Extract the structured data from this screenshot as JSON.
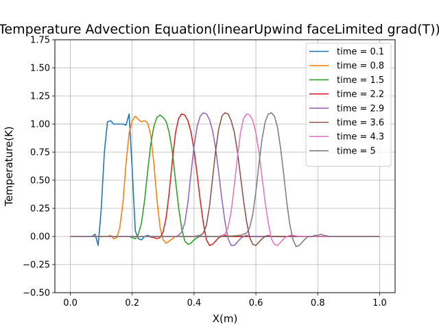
{
  "chart_data": {
    "type": "line",
    "title": "Temperature Advection Equation(linearUpwind faceLimited grad(T))",
    "xlabel": "X(m)",
    "ylabel": "Temperature(K)",
    "xlim": [
      -0.05,
      1.05
    ],
    "ylim": [
      -0.5,
      1.75
    ],
    "xticks": [
      0.0,
      0.2,
      0.4,
      0.6,
      0.8,
      1.0
    ],
    "xtick_labels": [
      "0.0",
      "0.2",
      "0.4",
      "0.6",
      "0.8",
      "1.0"
    ],
    "yticks": [
      -0.5,
      -0.25,
      0.0,
      0.25,
      0.5,
      0.75,
      1.0,
      1.25,
      1.5,
      1.75
    ],
    "ytick_labels": [
      "−0.50",
      "−0.25",
      "0.00",
      "0.25",
      "0.50",
      "0.75",
      "1.00",
      "1.25",
      "1.50",
      "1.75"
    ],
    "grid": true,
    "legend_position": "top-right",
    "series": [
      {
        "name": "time = 0.1",
        "color": "#1f77b4",
        "x": [
          0.0,
          0.02,
          0.04,
          0.06,
          0.07,
          0.08,
          0.09,
          0.1,
          0.11,
          0.12,
          0.13,
          0.14,
          0.15,
          0.16,
          0.17,
          0.18,
          0.19,
          0.2,
          0.21,
          0.22,
          0.23,
          0.24,
          0.25,
          0.26,
          0.28,
          0.3,
          0.35,
          0.4,
          0.5,
          0.6,
          0.7,
          0.8,
          0.9,
          1.0
        ],
        "y": [
          0.0,
          0.0,
          0.0,
          0.0,
          0.0,
          0.02,
          -0.08,
          0.25,
          0.75,
          1.02,
          1.03,
          1.0,
          1.0,
          1.0,
          1.0,
          0.99,
          1.09,
          0.6,
          0.05,
          -0.02,
          -0.03,
          0.0,
          0.01,
          0.0,
          0.0,
          0.0,
          0.0,
          0.0,
          0.0,
          0.0,
          0.0,
          0.0,
          0.0,
          0.0
        ]
      },
      {
        "name": "time = 0.8",
        "color": "#ff7f0e",
        "x": [
          0.0,
          0.05,
          0.1,
          0.12,
          0.13,
          0.14,
          0.15,
          0.16,
          0.17,
          0.18,
          0.19,
          0.2,
          0.21,
          0.22,
          0.23,
          0.24,
          0.25,
          0.26,
          0.27,
          0.28,
          0.29,
          0.3,
          0.31,
          0.32,
          0.33,
          0.34,
          0.36,
          0.4,
          0.5,
          0.6,
          0.7,
          0.8,
          0.9,
          1.0
        ],
        "y": [
          0.0,
          0.0,
          0.0,
          0.0,
          0.01,
          -0.02,
          -0.01,
          0.08,
          0.3,
          0.65,
          0.92,
          1.03,
          1.07,
          1.04,
          1.02,
          1.03,
          1.01,
          0.9,
          0.65,
          0.33,
          0.08,
          -0.03,
          -0.06,
          -0.04,
          -0.02,
          0.0,
          0.0,
          0.0,
          0.0,
          0.0,
          0.0,
          0.0,
          0.0,
          0.0
        ]
      },
      {
        "name": "time = 1.5",
        "color": "#2ca02c",
        "x": [
          0.0,
          0.1,
          0.18,
          0.19,
          0.2,
          0.21,
          0.22,
          0.23,
          0.24,
          0.25,
          0.26,
          0.27,
          0.28,
          0.29,
          0.3,
          0.31,
          0.32,
          0.33,
          0.34,
          0.35,
          0.36,
          0.37,
          0.38,
          0.39,
          0.4,
          0.41,
          0.42,
          0.44,
          0.5,
          0.6,
          0.7,
          0.8,
          0.9,
          1.0
        ],
        "y": [
          0.0,
          0.0,
          0.0,
          0.0,
          -0.01,
          -0.02,
          0.02,
          0.12,
          0.32,
          0.58,
          0.82,
          0.98,
          1.06,
          1.08,
          1.06,
          1.02,
          0.92,
          0.75,
          0.5,
          0.26,
          0.07,
          -0.04,
          -0.07,
          -0.06,
          -0.03,
          -0.01,
          0.0,
          0.0,
          0.0,
          0.0,
          0.0,
          0.0,
          0.0,
          0.0
        ]
      },
      {
        "name": "time = 2.2",
        "color": "#d62728",
        "x": [
          0.0,
          0.1,
          0.2,
          0.25,
          0.27,
          0.28,
          0.29,
          0.3,
          0.31,
          0.32,
          0.33,
          0.34,
          0.35,
          0.36,
          0.37,
          0.38,
          0.39,
          0.4,
          0.41,
          0.42,
          0.43,
          0.44,
          0.45,
          0.46,
          0.47,
          0.48,
          0.49,
          0.5,
          0.52,
          0.55,
          0.6,
          0.7,
          0.8,
          1.0
        ],
        "y": [
          0.0,
          0.0,
          0.0,
          0.0,
          -0.01,
          -0.02,
          -0.01,
          0.04,
          0.17,
          0.4,
          0.68,
          0.92,
          1.05,
          1.09,
          1.08,
          1.03,
          0.93,
          0.77,
          0.55,
          0.32,
          0.12,
          -0.03,
          -0.08,
          -0.07,
          -0.04,
          -0.01,
          0.0,
          0.01,
          0.0,
          0.0,
          0.0,
          0.0,
          0.0,
          0.0
        ]
      },
      {
        "name": "time = 2.9",
        "color": "#9467bd",
        "x": [
          0.0,
          0.1,
          0.2,
          0.3,
          0.34,
          0.35,
          0.36,
          0.37,
          0.38,
          0.39,
          0.4,
          0.41,
          0.42,
          0.43,
          0.44,
          0.45,
          0.46,
          0.47,
          0.48,
          0.49,
          0.5,
          0.51,
          0.52,
          0.53,
          0.54,
          0.55,
          0.56,
          0.57,
          0.58,
          0.6,
          0.65,
          0.7,
          0.8,
          1.0
        ],
        "y": [
          0.0,
          0.0,
          0.0,
          0.0,
          0.0,
          0.01,
          0.04,
          0.12,
          0.3,
          0.56,
          0.8,
          0.98,
          1.07,
          1.1,
          1.09,
          1.04,
          0.94,
          0.78,
          0.56,
          0.33,
          0.13,
          -0.02,
          -0.08,
          -0.08,
          -0.05,
          -0.02,
          0.0,
          0.01,
          0.0,
          0.0,
          0.0,
          0.0,
          0.0,
          0.0
        ]
      },
      {
        "name": "time = 3.6",
        "color": "#8c564b",
        "x": [
          0.0,
          0.1,
          0.2,
          0.3,
          0.4,
          0.42,
          0.43,
          0.44,
          0.45,
          0.46,
          0.47,
          0.48,
          0.49,
          0.5,
          0.51,
          0.52,
          0.53,
          0.54,
          0.55,
          0.56,
          0.57,
          0.58,
          0.59,
          0.6,
          0.61,
          0.62,
          0.63,
          0.64,
          0.65,
          0.67,
          0.7,
          0.8,
          0.9,
          1.0
        ],
        "y": [
          0.0,
          0.0,
          0.0,
          0.0,
          0.0,
          0.01,
          0.03,
          0.1,
          0.27,
          0.52,
          0.77,
          0.96,
          1.07,
          1.1,
          1.09,
          1.03,
          0.93,
          0.76,
          0.54,
          0.32,
          0.13,
          -0.01,
          -0.07,
          -0.08,
          -0.05,
          -0.02,
          0.0,
          0.01,
          0.0,
          0.0,
          0.0,
          0.0,
          0.0,
          0.0
        ]
      },
      {
        "name": "time = 4.3",
        "color": "#e377c2",
        "x": [
          0.0,
          0.1,
          0.2,
          0.3,
          0.4,
          0.48,
          0.5,
          0.51,
          0.52,
          0.53,
          0.54,
          0.55,
          0.56,
          0.57,
          0.58,
          0.59,
          0.6,
          0.61,
          0.62,
          0.63,
          0.64,
          0.65,
          0.66,
          0.67,
          0.68,
          0.69,
          0.7,
          0.71,
          0.72,
          0.74,
          0.76,
          0.8,
          0.9,
          1.0
        ],
        "y": [
          0.0,
          0.0,
          0.0,
          0.0,
          0.0,
          0.0,
          0.02,
          0.08,
          0.22,
          0.45,
          0.7,
          0.92,
          1.05,
          1.09,
          1.08,
          1.03,
          0.92,
          0.75,
          0.52,
          0.3,
          0.12,
          -0.02,
          -0.07,
          -0.08,
          -0.05,
          -0.02,
          0.0,
          0.01,
          0.01,
          0.0,
          0.0,
          0.0,
          0.0,
          0.0
        ]
      },
      {
        "name": "time = 5",
        "color": "#7f7f7f",
        "x": [
          0.0,
          0.1,
          0.2,
          0.3,
          0.4,
          0.5,
          0.55,
          0.57,
          0.58,
          0.59,
          0.6,
          0.61,
          0.62,
          0.63,
          0.64,
          0.65,
          0.66,
          0.67,
          0.68,
          0.69,
          0.7,
          0.71,
          0.72,
          0.73,
          0.74,
          0.75,
          0.76,
          0.77,
          0.78,
          0.79,
          0.8,
          0.81,
          0.82,
          0.84,
          0.86,
          0.9,
          1.0
        ],
        "y": [
          0.0,
          0.0,
          0.0,
          0.0,
          0.0,
          0.0,
          0.01,
          0.03,
          0.08,
          0.2,
          0.4,
          0.65,
          0.87,
          1.02,
          1.09,
          1.1,
          1.07,
          0.97,
          0.78,
          0.55,
          0.3,
          0.1,
          -0.03,
          -0.09,
          -0.08,
          -0.05,
          -0.02,
          0.0,
          0.0,
          0.01,
          0.01,
          0.02,
          0.01,
          0.0,
          0.0,
          0.0,
          0.0
        ]
      }
    ]
  }
}
